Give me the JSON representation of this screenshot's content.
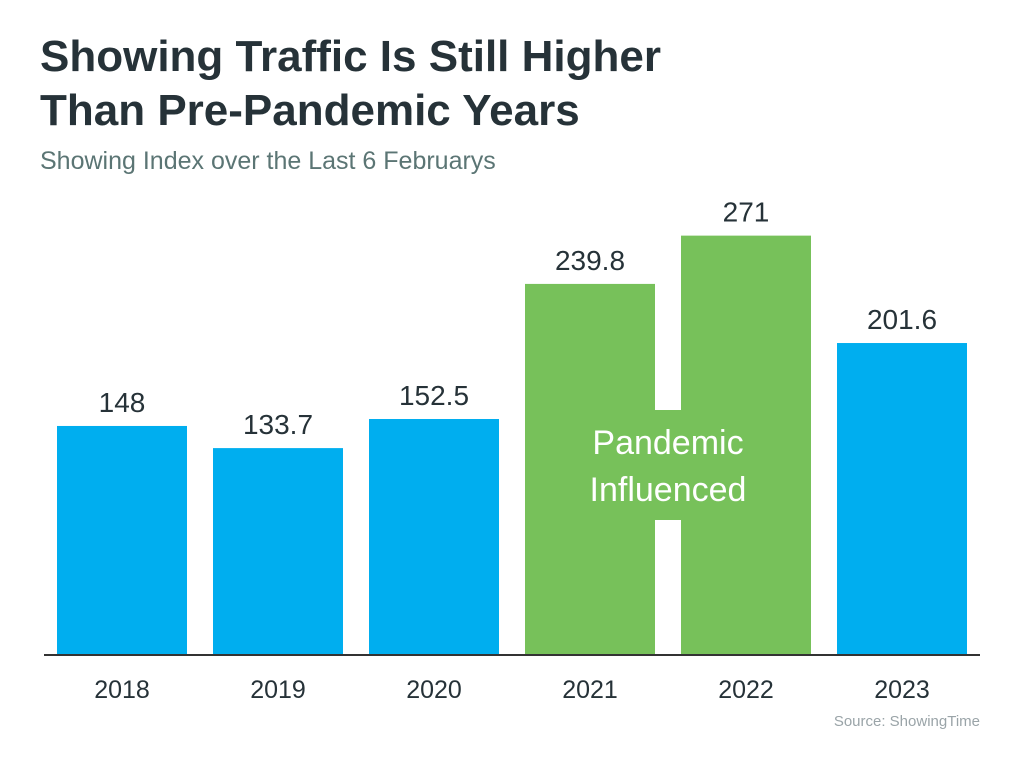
{
  "header": {
    "title_line1": "Showing Traffic Is Still Higher",
    "title_line2": "Than Pre-Pandemic Years",
    "subtitle": "Showing Index over the Last 6 Februarys"
  },
  "chart_data": {
    "type": "bar",
    "title": "Showing Traffic Is Still Higher Than Pre-Pandemic Years",
    "subtitle": "Showing Index over the Last 6 Februarys",
    "categories": [
      "2018",
      "2019",
      "2020",
      "2021",
      "2022",
      "2023"
    ],
    "values": [
      148,
      133.7,
      152.5,
      239.8,
      271,
      201.6
    ],
    "value_labels": [
      "148",
      "133.7",
      "152.5",
      "239.8",
      "271",
      "201.6"
    ],
    "highlighted": [
      false,
      false,
      false,
      true,
      true,
      false
    ],
    "annotation": {
      "line1": "Pandemic",
      "line2": "Influenced",
      "applies_to": [
        "2021",
        "2022"
      ]
    },
    "ylim": [
      0,
      300
    ],
    "grid": false,
    "legend": "none",
    "colors": {
      "default_bar": "#00aeef",
      "highlight_bar": "#77c15a",
      "axis": "#333333",
      "label": "#263238",
      "annotation_text": "#ffffff"
    }
  },
  "footer": {
    "source": "Source: ShowingTime"
  }
}
